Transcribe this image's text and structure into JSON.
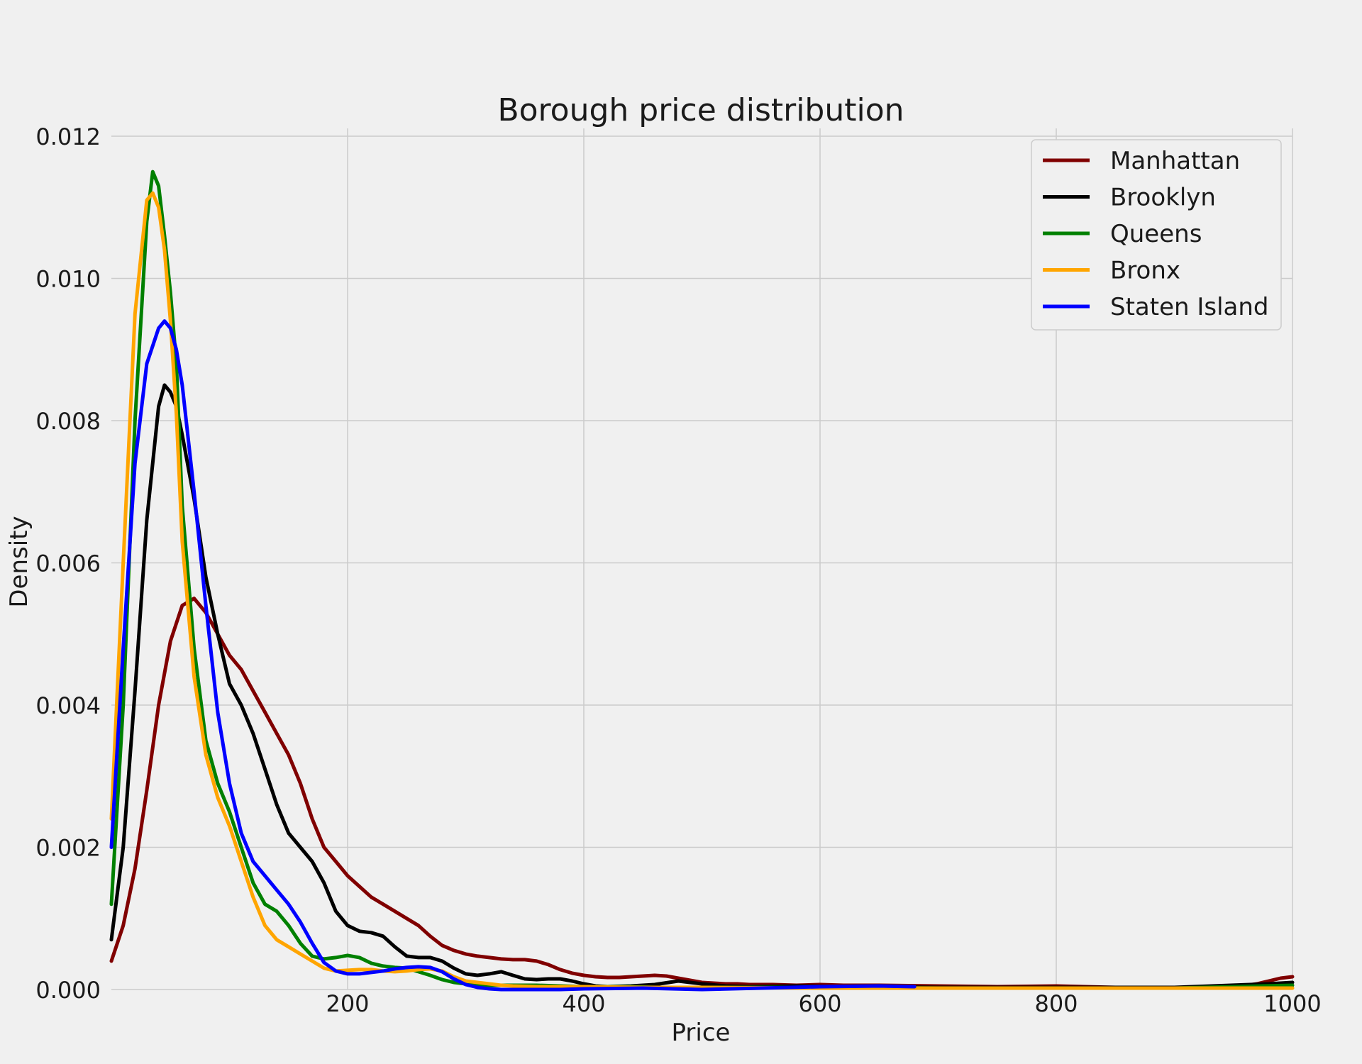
{
  "chart_data": {
    "type": "line",
    "title": "Borough price distribution",
    "xlabel": "Price",
    "ylabel": "Density",
    "xlim": [
      0,
      1000
    ],
    "ylim": [
      0,
      0.012
    ],
    "grid": true,
    "legend_position": "top-right",
    "x_ticks": [
      {
        "value": 200,
        "label": "200"
      },
      {
        "value": 400,
        "label": "400"
      },
      {
        "value": 600,
        "label": "600"
      },
      {
        "value": 800,
        "label": "800"
      },
      {
        "value": 1000,
        "label": "1000"
      }
    ],
    "y_ticks": [
      {
        "value": 0,
        "label": "0.000"
      },
      {
        "value": 0.002,
        "label": "0.002"
      },
      {
        "value": 0.004,
        "label": "0.004"
      },
      {
        "value": 0.006,
        "label": "0.006"
      },
      {
        "value": 0.008,
        "label": "0.008"
      },
      {
        "value": 0.01,
        "label": "0.010"
      },
      {
        "value": 0.012,
        "label": "0.012"
      }
    ],
    "series": [
      {
        "name": "Manhattan",
        "color": "#800000",
        "x": [
          0,
          10,
          20,
          30,
          40,
          50,
          60,
          70,
          80,
          90,
          100,
          110,
          120,
          130,
          140,
          150,
          160,
          170,
          180,
          190,
          200,
          210,
          220,
          230,
          240,
          250,
          260,
          270,
          280,
          290,
          300,
          310,
          320,
          330,
          340,
          350,
          360,
          370,
          380,
          390,
          400,
          410,
          420,
          430,
          440,
          450,
          460,
          470,
          480,
          490,
          500,
          510,
          520,
          530,
          540,
          550,
          560,
          580,
          600,
          620,
          650,
          700,
          750,
          800,
          850,
          900,
          950,
          970,
          990,
          1000
        ],
        "y": [
          0.0004,
          0.0009,
          0.0017,
          0.0028,
          0.004,
          0.0049,
          0.0054,
          0.0055,
          0.0053,
          0.005,
          0.0047,
          0.0045,
          0.0042,
          0.0039,
          0.0036,
          0.0033,
          0.0029,
          0.0024,
          0.002,
          0.0018,
          0.0016,
          0.00145,
          0.0013,
          0.0012,
          0.0011,
          0.001,
          0.0009,
          0.00075,
          0.00062,
          0.00055,
          0.0005,
          0.00047,
          0.00045,
          0.00043,
          0.00042,
          0.00042,
          0.0004,
          0.00035,
          0.00028,
          0.00023,
          0.0002,
          0.00018,
          0.00017,
          0.00017,
          0.00018,
          0.00019,
          0.0002,
          0.00019,
          0.00016,
          0.00013,
          0.0001,
          9e-05,
          8e-05,
          8e-05,
          7e-05,
          7e-05,
          7e-05,
          6e-05,
          7e-05,
          6e-05,
          6e-05,
          5e-05,
          4e-05,
          5e-05,
          3e-05,
          2e-05,
          3e-05,
          8e-05,
          0.00016,
          0.00018
        ]
      },
      {
        "name": "Brooklyn",
        "color": "#000000",
        "x": [
          0,
          10,
          20,
          30,
          40,
          45,
          50,
          55,
          60,
          70,
          80,
          90,
          100,
          110,
          120,
          130,
          140,
          150,
          160,
          170,
          180,
          190,
          200,
          210,
          220,
          230,
          240,
          250,
          260,
          270,
          280,
          290,
          300,
          310,
          320,
          330,
          340,
          350,
          360,
          370,
          380,
          390,
          400,
          410,
          420,
          440,
          460,
          480,
          500,
          520,
          540,
          580,
          620,
          700,
          800,
          900,
          980,
          1000
        ],
        "y": [
          0.0007,
          0.002,
          0.0042,
          0.0066,
          0.0082,
          0.0085,
          0.0084,
          0.0082,
          0.0078,
          0.0069,
          0.0058,
          0.005,
          0.0043,
          0.004,
          0.0036,
          0.0031,
          0.0026,
          0.0022,
          0.002,
          0.0018,
          0.0015,
          0.0011,
          0.0009,
          0.00082,
          0.0008,
          0.00075,
          0.0006,
          0.00047,
          0.00045,
          0.00045,
          0.0004,
          0.0003,
          0.00022,
          0.0002,
          0.00022,
          0.00025,
          0.0002,
          0.00015,
          0.00014,
          0.00015,
          0.00015,
          0.00012,
          8e-05,
          5e-05,
          4e-05,
          5e-05,
          7e-05,
          0.00012,
          8e-05,
          5e-05,
          4e-05,
          5e-05,
          4e-05,
          3e-05,
          3e-05,
          3e-05,
          8e-05,
          0.0001
        ]
      },
      {
        "name": "Queens",
        "color": "#008000",
        "x": [
          0,
          10,
          20,
          30,
          35,
          40,
          45,
          50,
          55,
          60,
          70,
          80,
          90,
          100,
          110,
          120,
          130,
          140,
          150,
          160,
          170,
          180,
          190,
          200,
          210,
          220,
          230,
          240,
          250,
          260,
          270,
          280,
          290,
          300,
          310,
          320,
          330,
          340,
          360,
          380,
          400,
          420,
          440,
          460,
          500,
          600,
          700,
          800,
          900,
          1000
        ],
        "y": [
          0.0012,
          0.004,
          0.008,
          0.0108,
          0.0115,
          0.0113,
          0.0106,
          0.0098,
          0.0088,
          0.0068,
          0.0048,
          0.0035,
          0.0029,
          0.0025,
          0.002,
          0.0015,
          0.0012,
          0.0011,
          0.0009,
          0.00065,
          0.00047,
          0.00043,
          0.00045,
          0.00048,
          0.00045,
          0.00037,
          0.00033,
          0.00031,
          0.0003,
          0.00025,
          0.0002,
          0.00014,
          0.0001,
          8e-05,
          7e-05,
          6e-05,
          6e-05,
          6e-05,
          6e-05,
          5e-05,
          4e-05,
          4e-05,
          4e-05,
          3e-05,
          3e-05,
          3e-05,
          2e-05,
          2e-05,
          2e-05,
          6e-05
        ]
      },
      {
        "name": "Bronx",
        "color": "#ffa500",
        "x": [
          0,
          10,
          20,
          30,
          35,
          40,
          45,
          50,
          55,
          60,
          70,
          80,
          90,
          100,
          110,
          120,
          130,
          140,
          150,
          160,
          170,
          180,
          190,
          200,
          210,
          220,
          230,
          240,
          250,
          260,
          270,
          280,
          290,
          300,
          310,
          320,
          330,
          340,
          360,
          380,
          400,
          450,
          500,
          600,
          700,
          800,
          900,
          1000
        ],
        "y": [
          0.0024,
          0.006,
          0.0095,
          0.0111,
          0.0112,
          0.011,
          0.0104,
          0.0094,
          0.0081,
          0.0063,
          0.0044,
          0.0033,
          0.0027,
          0.0023,
          0.0018,
          0.0013,
          0.0009,
          0.0007,
          0.0006,
          0.0005,
          0.0004,
          0.0003,
          0.00026,
          0.00027,
          0.00028,
          0.00028,
          0.00026,
          0.00025,
          0.00026,
          0.00028,
          0.00029,
          0.00026,
          0.00018,
          0.00012,
          0.0001,
          8e-05,
          6e-05,
          5e-05,
          4e-05,
          4e-05,
          4e-05,
          3e-05,
          3e-05,
          2e-05,
          2e-05,
          2e-05,
          2e-05,
          2e-05
        ]
      },
      {
        "name": "Staten Island",
        "color": "#0000ff",
        "x": [
          0,
          10,
          20,
          30,
          40,
          45,
          50,
          55,
          60,
          70,
          80,
          90,
          100,
          110,
          120,
          130,
          140,
          150,
          160,
          170,
          180,
          190,
          200,
          210,
          220,
          230,
          240,
          250,
          260,
          270,
          280,
          290,
          300,
          310,
          320,
          330,
          340,
          360,
          380,
          400,
          450,
          500,
          550,
          600,
          650,
          680
        ],
        "y": [
          0.002,
          0.0048,
          0.0074,
          0.0088,
          0.0093,
          0.0094,
          0.0093,
          0.009,
          0.0085,
          0.007,
          0.0054,
          0.0039,
          0.0029,
          0.0022,
          0.0018,
          0.0016,
          0.0014,
          0.0012,
          0.00095,
          0.00065,
          0.00038,
          0.00026,
          0.00022,
          0.00022,
          0.00024,
          0.00026,
          0.00029,
          0.00031,
          0.00032,
          0.00031,
          0.00025,
          0.00015,
          7e-05,
          3e-05,
          1e-05,
          0.0,
          0.0,
          0.0,
          0.0,
          1e-05,
          2e-05,
          0.0,
          2e-05,
          4e-05,
          5e-05,
          4e-05
        ]
      }
    ]
  }
}
